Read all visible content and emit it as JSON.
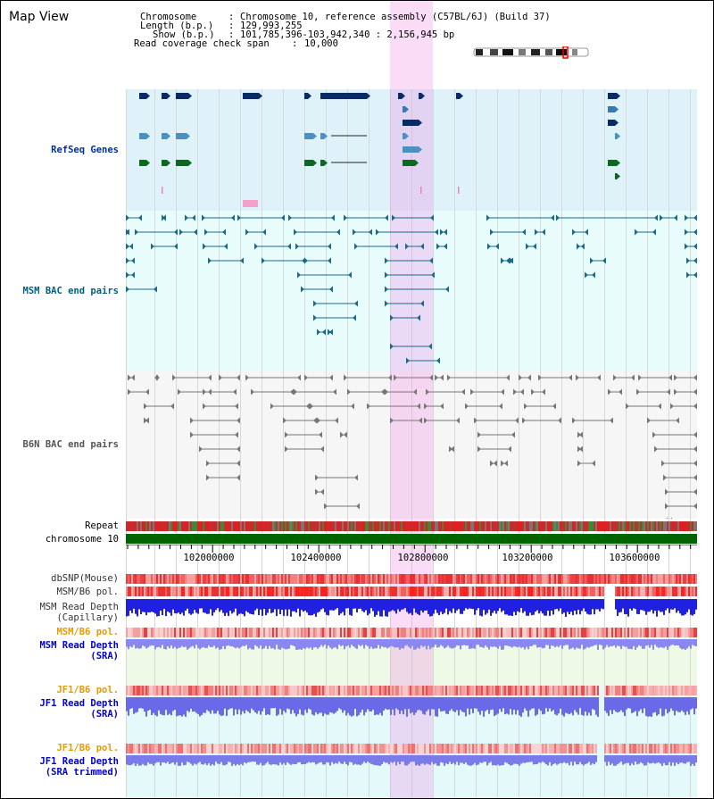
{
  "header": {
    "title": "Map View",
    "chromosome_label": "Chromosome",
    "chromosome_value": "Chromosome 10, reference assembly (C57BL/6J) (Build 37)",
    "length_label": "Length (b.p.)",
    "length_value": "129,993,255",
    "show_label": "Show (b.p.)",
    "show_value": "101,785,396-103,942,340 : 2,156,945 bp",
    "coverage_label": "Read coverage check span",
    "coverage_value": "10,000"
  },
  "tracks": {
    "refseq": "RefSeq Genes",
    "msm_bac": "MSM BAC end pairs",
    "b6n_bac": "B6N BAC end pairs",
    "repeat": "Repeat",
    "chromosome": "chromosome 10",
    "dbsnp": "dbSNP(Mouse)",
    "msm_b6_pol_1": "MSM/B6 pol.",
    "msm_depth_cap_1": "MSM Read Depth",
    "msm_depth_cap_2": "(Capillary)",
    "msm_b6_pol_2": "MSM/B6 pol.",
    "msm_depth_sra_1": "MSM Read Depth",
    "msm_depth_sra_2": "(SRA)",
    "jf1_b6_pol_1": "JF1/B6 pol.",
    "jf1_depth_sra_1": "JF1 Read Depth",
    "jf1_depth_sra_2": "(SRA)",
    "jf1_b6_pol_2": "JF1/B6 pol.",
    "jf1_depth_trim_1": "JF1 Read Depth",
    "jf1_depth_trim_2": "(SRA trimmed)"
  },
  "ruler": {
    "ticks": [
      "102000000",
      "102400000",
      "102800000",
      "103200000",
      "103600000"
    ]
  },
  "colors": {
    "refseq_label": "#003399",
    "msm_bac_label": "#006080",
    "b6n_bac_label": "#555555",
    "pol_orange": "#e89a00",
    "depth_blue": "#0000cc",
    "refseq_bg": "#dff2fa",
    "msm_bg": "#e8fcfc",
    "b6n_bg": "#f6f6f6",
    "highlight": "#f6c6f0"
  }
}
